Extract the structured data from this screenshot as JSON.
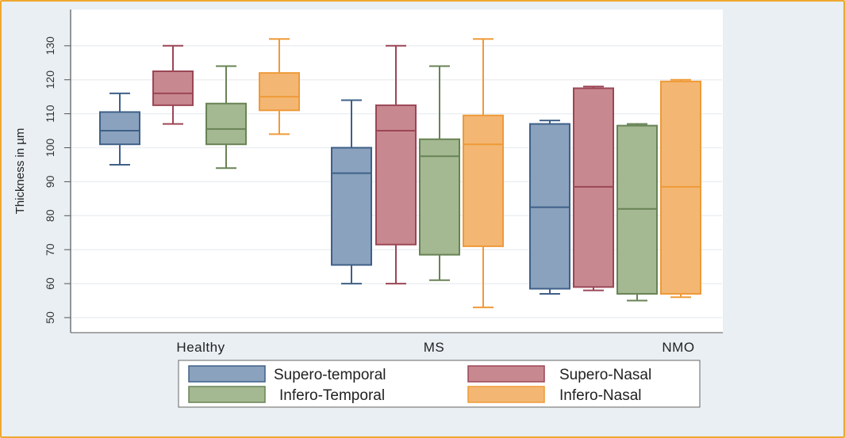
{
  "chart_data": {
    "type": "box",
    "title": "",
    "xlabel": "",
    "ylabel": "Thickness in µm",
    "ylim": [
      45,
      134
    ],
    "yticks": [
      50,
      60,
      70,
      80,
      90,
      100,
      110,
      120,
      130
    ],
    "grid": true,
    "legend_position": "bottom",
    "categories": [
      "Healthy",
      "MS",
      "NMO"
    ],
    "series": [
      {
        "name": "Supero-temporal",
        "color": "#8aa2bd",
        "stroke": "#3f6088",
        "boxes": [
          {
            "min": 95,
            "q1": 101,
            "median": 105,
            "q3": 110.5,
            "max": 116
          },
          {
            "min": 60,
            "q1": 65.5,
            "median": 92.5,
            "q3": 100,
            "max": 114
          },
          {
            "min": 57,
            "q1": 58.5,
            "median": 82.5,
            "q3": 107,
            "max": 108
          }
        ]
      },
      {
        "name": "Supero-Nasal",
        "color": "#c8888f",
        "stroke": "#9b4656",
        "boxes": [
          {
            "min": 107,
            "q1": 112.5,
            "median": 116,
            "q3": 122.5,
            "max": 130
          },
          {
            "min": 60,
            "q1": 71.5,
            "median": 105,
            "q3": 112.5,
            "max": 130
          },
          {
            "min": 58,
            "q1": 59,
            "median": 88.5,
            "q3": 117.5,
            "max": 118
          }
        ]
      },
      {
        "name": "Infero-Temporal",
        "color": "#a4b891",
        "stroke": "#688355",
        "boxes": [
          {
            "min": 94,
            "q1": 101,
            "median": 105.5,
            "q3": 113,
            "max": 124
          },
          {
            "min": 61,
            "q1": 68.5,
            "median": 97.5,
            "q3": 102.5,
            "max": 124
          },
          {
            "min": 55,
            "q1": 57,
            "median": 82,
            "q3": 106.5,
            "max": 107
          }
        ]
      },
      {
        "name": "Infero-Nasal",
        "color": "#f3b773",
        "stroke": "#ef9a38",
        "boxes": [
          {
            "min": 104,
            "q1": 111,
            "median": 115,
            "q3": 122,
            "max": 132
          },
          {
            "min": 53,
            "q1": 71,
            "median": 101,
            "q3": 109.5,
            "max": 132
          },
          {
            "min": 56,
            "q1": 57,
            "median": 88.5,
            "q3": 119.5,
            "max": 120
          }
        ]
      }
    ]
  }
}
